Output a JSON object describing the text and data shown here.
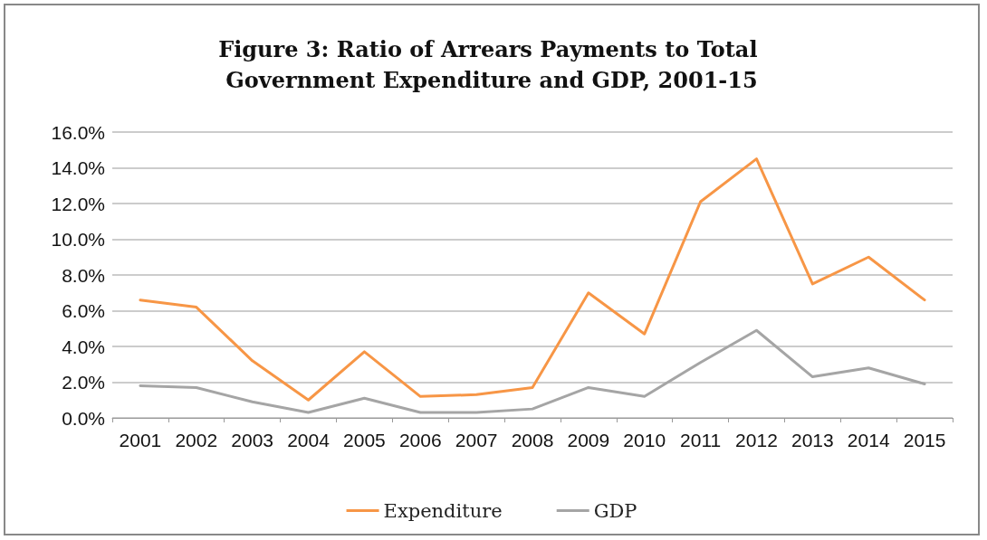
{
  "chart_data": {
    "type": "line",
    "title": "Figure 3: Ratio of Arrears Payments to Total Government Expenditure and GDP, 2001-15",
    "categories": [
      "2001",
      "2002",
      "2003",
      "2004",
      "2005",
      "2006",
      "2007",
      "2008",
      "2009",
      "2010",
      "2011",
      "2012",
      "2013",
      "2014",
      "2015"
    ],
    "series": [
      {
        "name": "Expenditure",
        "color": "#f79646",
        "values": [
          6.6,
          6.2,
          3.2,
          1.0,
          3.7,
          1.2,
          1.3,
          1.7,
          7.0,
          4.7,
          12.1,
          14.5,
          7.5,
          9.0,
          6.6
        ]
      },
      {
        "name": "GDP",
        "color": "#a5a5a5",
        "values": [
          1.8,
          1.7,
          0.9,
          0.3,
          1.1,
          0.3,
          0.3,
          0.5,
          1.7,
          1.2,
          3.1,
          4.9,
          2.3,
          2.8,
          1.9
        ]
      }
    ],
    "ylim": [
      0,
      16
    ],
    "yticks": [
      {
        "value": 0,
        "label": "0.0%"
      },
      {
        "value": 2,
        "label": "2.0%"
      },
      {
        "value": 4,
        "label": "4.0%"
      },
      {
        "value": 6,
        "label": "6.0%"
      },
      {
        "value": 8,
        "label": "8.0%"
      },
      {
        "value": 10,
        "label": "10.0%"
      },
      {
        "value": 12,
        "label": "12.0%"
      },
      {
        "value": 14,
        "label": "14.0%"
      },
      {
        "value": 16,
        "label": "16.0%"
      }
    ],
    "grid": "y",
    "legend": "bottom",
    "marker": "none",
    "line_style": "solid"
  }
}
